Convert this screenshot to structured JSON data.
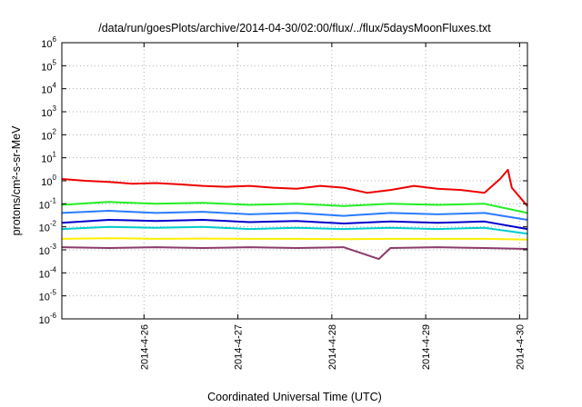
{
  "chart_data": {
    "type": "line",
    "title": "/data/run/goesPlots/archive/2014-04-30/02:00/flux/../flux/5daysMoonFluxes.txt",
    "xlabel": "Coordinated Universal Time (UTC)",
    "ylabel": "protons/cm²-s-sr-MeV",
    "y_scale": "log",
    "ylim": [
      1e-06,
      1000000.0
    ],
    "y_ticks": [
      {
        "base": "10",
        "exp": "-6"
      },
      {
        "base": "10",
        "exp": "-5"
      },
      {
        "base": "10",
        "exp": "-4"
      },
      {
        "base": "10",
        "exp": "-3"
      },
      {
        "base": "10",
        "exp": "-2"
      },
      {
        "base": "10",
        "exp": "-1"
      },
      {
        "base": "10",
        "exp": "0"
      },
      {
        "base": "10",
        "exp": "1"
      },
      {
        "base": "10",
        "exp": "2"
      },
      {
        "base": "10",
        "exp": "3"
      },
      {
        "base": "10",
        "exp": "4"
      },
      {
        "base": "10",
        "exp": "5"
      },
      {
        "base": "10",
        "exp": "6"
      }
    ],
    "xlim": [
      "2014-04-25T03:00",
      "2014-04-30T02:00"
    ],
    "x_ticks": [
      "2014-4-26",
      "2014-4-27",
      "2014-4-28",
      "2014-4-29",
      "2014-4-30"
    ],
    "grid": true,
    "series": [
      {
        "color": "#ee0000",
        "x": [
          "2014-04-25T03:00",
          "2014-04-25T09:00",
          "2014-04-25T15:00",
          "2014-04-25T21:00",
          "2014-04-26T03:00",
          "2014-04-26T09:00",
          "2014-04-26T15:00",
          "2014-04-26T21:00",
          "2014-04-27T03:00",
          "2014-04-27T09:00",
          "2014-04-27T15:00",
          "2014-04-27T21:00",
          "2014-04-28T03:00",
          "2014-04-28T09:00",
          "2014-04-28T15:00",
          "2014-04-28T21:00",
          "2014-04-29T03:00",
          "2014-04-29T09:00",
          "2014-04-29T15:00",
          "2014-04-29T19:00",
          "2014-04-29T21:00",
          "2014-04-29T22:00",
          "2014-04-30T00:00",
          "2014-04-30T02:00"
        ],
        "y": [
          1.2,
          1.0,
          0.9,
          0.75,
          0.8,
          0.7,
          0.6,
          0.55,
          0.6,
          0.5,
          0.45,
          0.6,
          0.5,
          0.3,
          0.4,
          0.6,
          0.45,
          0.4,
          0.3,
          1.2,
          3.0,
          0.5,
          0.2,
          0.08
        ]
      },
      {
        "color": "#22ee22",
        "x": [
          "2014-04-25T03:00",
          "2014-04-25T15:00",
          "2014-04-26T03:00",
          "2014-04-26T15:00",
          "2014-04-27T03:00",
          "2014-04-27T15:00",
          "2014-04-28T03:00",
          "2014-04-28T15:00",
          "2014-04-29T03:00",
          "2014-04-29T15:00",
          "2014-04-30T02:00"
        ],
        "y": [
          0.09,
          0.12,
          0.1,
          0.11,
          0.09,
          0.1,
          0.08,
          0.1,
          0.09,
          0.1,
          0.04
        ]
      },
      {
        "color": "#2a7bff",
        "x": [
          "2014-04-25T03:00",
          "2014-04-25T15:00",
          "2014-04-26T03:00",
          "2014-04-26T15:00",
          "2014-04-27T03:00",
          "2014-04-27T15:00",
          "2014-04-28T03:00",
          "2014-04-28T15:00",
          "2014-04-29T03:00",
          "2014-04-29T15:00",
          "2014-04-30T02:00"
        ],
        "y": [
          0.04,
          0.05,
          0.04,
          0.045,
          0.035,
          0.04,
          0.03,
          0.04,
          0.035,
          0.04,
          0.02
        ]
      },
      {
        "color": "#0000cc",
        "x": [
          "2014-04-25T03:00",
          "2014-04-25T15:00",
          "2014-04-26T03:00",
          "2014-04-26T15:00",
          "2014-04-27T03:00",
          "2014-04-27T15:00",
          "2014-04-28T03:00",
          "2014-04-28T15:00",
          "2014-04-29T03:00",
          "2014-04-29T15:00",
          "2014-04-30T02:00"
        ],
        "y": [
          0.015,
          0.02,
          0.018,
          0.02,
          0.016,
          0.018,
          0.014,
          0.017,
          0.015,
          0.017,
          0.008
        ]
      },
      {
        "color": "#00cccc",
        "x": [
          "2014-04-25T03:00",
          "2014-04-25T15:00",
          "2014-04-26T03:00",
          "2014-04-26T15:00",
          "2014-04-27T03:00",
          "2014-04-27T15:00",
          "2014-04-28T03:00",
          "2014-04-28T15:00",
          "2014-04-29T03:00",
          "2014-04-29T15:00",
          "2014-04-30T02:00"
        ],
        "y": [
          0.008,
          0.01,
          0.009,
          0.01,
          0.008,
          0.009,
          0.008,
          0.009,
          0.008,
          0.009,
          0.005
        ]
      },
      {
        "color": "#ffee00",
        "x": [
          "2014-04-25T03:00",
          "2014-04-25T15:00",
          "2014-04-26T03:00",
          "2014-04-26T15:00",
          "2014-04-27T03:00",
          "2014-04-27T15:00",
          "2014-04-28T03:00",
          "2014-04-28T15:00",
          "2014-04-29T03:00",
          "2014-04-29T15:00",
          "2014-04-30T02:00"
        ],
        "y": [
          0.003,
          0.0032,
          0.003,
          0.0031,
          0.003,
          0.003,
          0.0029,
          0.003,
          0.003,
          0.003,
          0.0028
        ]
      },
      {
        "color": "#8b3a6b",
        "x": [
          "2014-04-25T03:00",
          "2014-04-25T15:00",
          "2014-04-26T03:00",
          "2014-04-26T15:00",
          "2014-04-27T03:00",
          "2014-04-27T15:00",
          "2014-04-28T03:00",
          "2014-04-28T12:00",
          "2014-04-28T15:00",
          "2014-04-29T03:00",
          "2014-04-29T15:00",
          "2014-04-30T02:00"
        ],
        "y": [
          0.0013,
          0.0012,
          0.0013,
          0.0012,
          0.0013,
          0.0012,
          0.0013,
          0.0004,
          0.0012,
          0.0013,
          0.0012,
          0.0011
        ]
      }
    ]
  }
}
